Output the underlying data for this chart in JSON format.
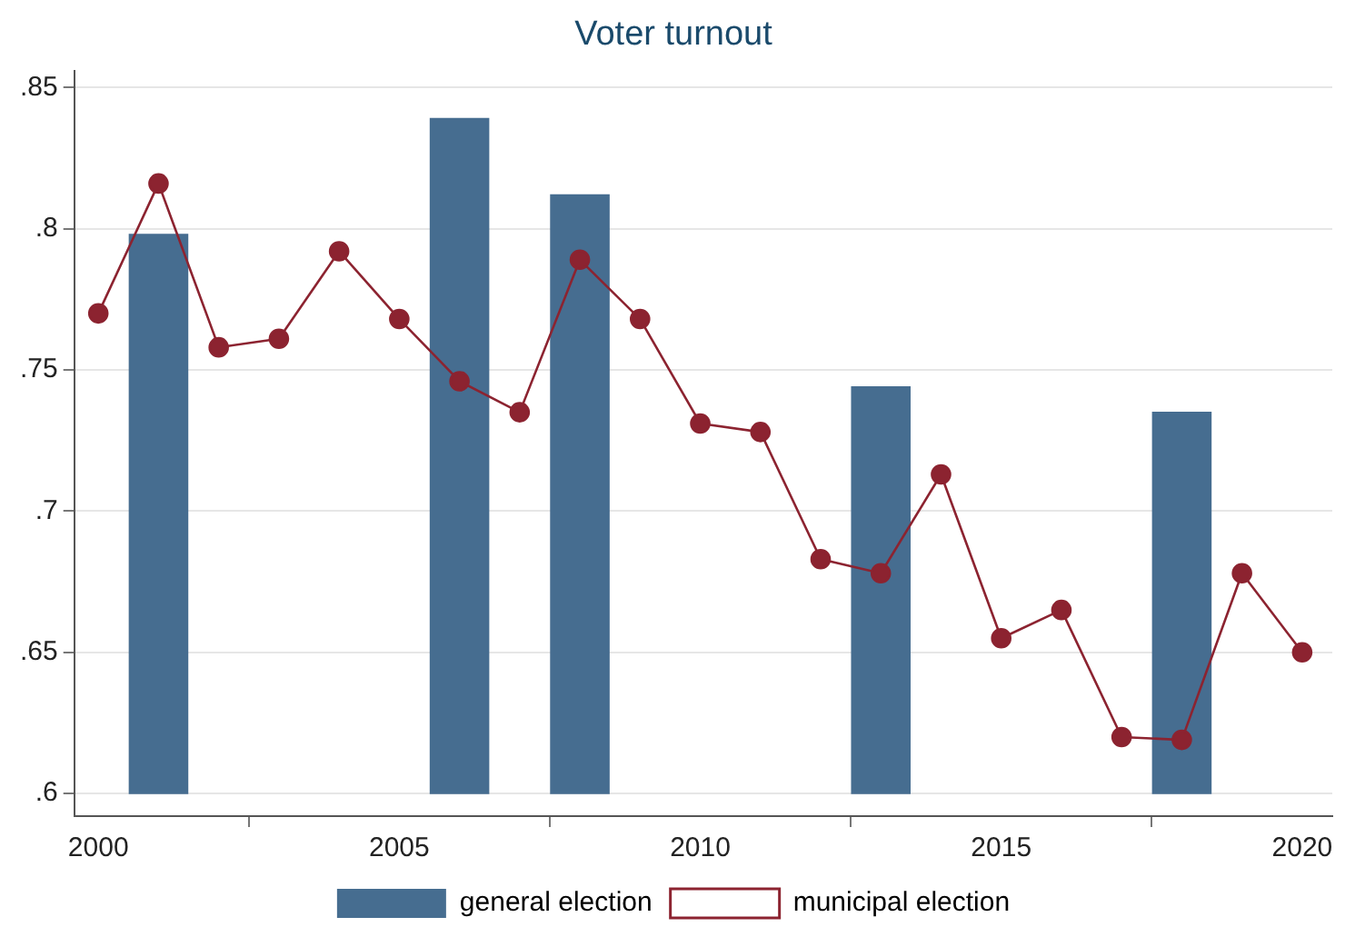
{
  "chart_data": {
    "type": "bar",
    "title": "Voter turnout",
    "xlim": [
      1999.6,
      2020.5
    ],
    "xticks": [
      2000,
      2005,
      2010,
      2015,
      2020
    ],
    "ylim": [
      0.592,
      0.856
    ],
    "yticks": [
      {
        "value": 0.6,
        "label": ".6"
      },
      {
        "value": 0.65,
        "label": ".65"
      },
      {
        "value": 0.7,
        "label": ".7"
      },
      {
        "value": 0.75,
        "label": ".75"
      },
      {
        "value": 0.8,
        "label": ".8"
      },
      {
        "value": 0.85,
        "label": ".85"
      }
    ],
    "grid": "y",
    "legend": "bottom",
    "series": [
      {
        "name": "general election",
        "color": "#466d90",
        "x": [
          2001,
          2006,
          2008,
          2013,
          2018
        ],
        "base": [
          0.6,
          0.6,
          0.6,
          0.6,
          0.6
        ],
        "values": [
          0.198,
          0.239,
          0.212,
          0.144,
          0.135
        ]
      },
      {
        "name": "municipal election",
        "type": "line",
        "color": "#8c2330",
        "marker": "circle",
        "x": [
          2000,
          2001,
          2002,
          2003,
          2004,
          2005,
          2006,
          2007,
          2008,
          2009,
          2010,
          2011,
          2012,
          2013,
          2014,
          2015,
          2016,
          2017,
          2018,
          2019,
          2020
        ],
        "values": [
          0.77,
          0.816,
          0.758,
          0.761,
          0.792,
          0.768,
          0.746,
          0.735,
          0.789,
          0.768,
          0.731,
          0.728,
          0.683,
          0.678,
          0.713,
          0.655,
          0.665,
          0.62,
          0.619,
          0.678,
          0.65
        ]
      }
    ]
  }
}
